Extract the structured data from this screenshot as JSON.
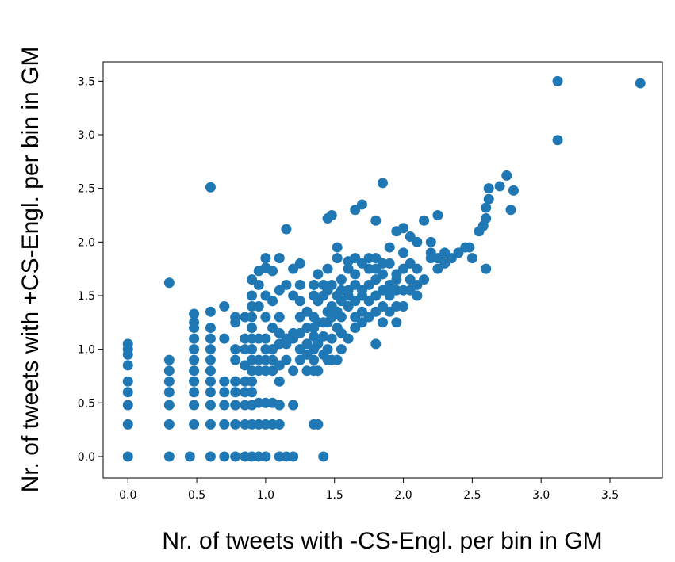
{
  "chart_data": {
    "type": "scatter",
    "xlabel": "Nr. of tweets with -CS-Engl. per bin in GM",
    "ylabel": "Nr. of tweets with +CS-Engl. per bin in GM",
    "xlim": [
      -0.18,
      3.88
    ],
    "ylim": [
      -0.2,
      3.68
    ],
    "x_ticks": [
      "0.0",
      "0.5",
      "1.0",
      "1.5",
      "2.0",
      "2.5",
      "3.0",
      "3.5"
    ],
    "y_ticks": [
      "0.0",
      "0.5",
      "1.0",
      "1.5",
      "2.0",
      "2.5",
      "3.0",
      "3.5"
    ],
    "marker_color": "#1f77b4",
    "grid": false,
    "series": [
      {
        "points": [
          [
            0.0,
            0.0
          ],
          [
            0.0,
            0.3
          ],
          [
            0.0,
            0.48
          ],
          [
            0.0,
            0.6
          ],
          [
            0.0,
            0.7
          ],
          [
            0.0,
            0.85
          ],
          [
            0.0,
            0.95
          ],
          [
            0.0,
            1.0
          ],
          [
            0.0,
            1.05
          ],
          [
            0.3,
            0.0
          ],
          [
            0.3,
            0.3
          ],
          [
            0.3,
            0.48
          ],
          [
            0.3,
            0.6
          ],
          [
            0.3,
            0.7
          ],
          [
            0.3,
            0.8
          ],
          [
            0.3,
            0.9
          ],
          [
            0.3,
            1.62
          ],
          [
            0.45,
            0.0
          ],
          [
            0.48,
            0.3
          ],
          [
            0.48,
            0.48
          ],
          [
            0.48,
            0.6
          ],
          [
            0.48,
            0.7
          ],
          [
            0.48,
            0.8
          ],
          [
            0.48,
            0.9
          ],
          [
            0.48,
            1.0
          ],
          [
            0.48,
            1.1
          ],
          [
            0.48,
            1.2
          ],
          [
            0.48,
            1.25
          ],
          [
            0.48,
            1.33
          ],
          [
            0.6,
            0.0
          ],
          [
            0.6,
            0.3
          ],
          [
            0.6,
            0.48
          ],
          [
            0.6,
            0.6
          ],
          [
            0.6,
            0.7
          ],
          [
            0.6,
            0.8
          ],
          [
            0.6,
            0.9
          ],
          [
            0.6,
            1.0
          ],
          [
            0.6,
            1.1
          ],
          [
            0.6,
            1.2
          ],
          [
            0.6,
            1.35
          ],
          [
            0.6,
            2.51
          ],
          [
            0.7,
            0.0
          ],
          [
            0.7,
            0.3
          ],
          [
            0.7,
            0.48
          ],
          [
            0.7,
            0.6
          ],
          [
            0.7,
            0.7
          ],
          [
            0.7,
            1.1
          ],
          [
            0.7,
            1.4
          ],
          [
            0.78,
            0.0
          ],
          [
            0.78,
            0.3
          ],
          [
            0.78,
            0.48
          ],
          [
            0.78,
            0.6
          ],
          [
            0.78,
            0.7
          ],
          [
            0.78,
            0.9
          ],
          [
            0.78,
            1.0
          ],
          [
            0.78,
            1.25
          ],
          [
            0.78,
            1.3
          ],
          [
            0.85,
            0.0
          ],
          [
            0.85,
            0.3
          ],
          [
            0.85,
            0.48
          ],
          [
            0.85,
            0.6
          ],
          [
            0.85,
            0.7
          ],
          [
            0.85,
            0.85
          ],
          [
            0.85,
            1.0
          ],
          [
            0.85,
            1.1
          ],
          [
            0.85,
            1.3
          ],
          [
            0.9,
            0.0
          ],
          [
            0.9,
            0.3
          ],
          [
            0.9,
            0.48
          ],
          [
            0.9,
            0.6
          ],
          [
            0.9,
            0.7
          ],
          [
            0.9,
            0.8
          ],
          [
            0.9,
            0.9
          ],
          [
            0.9,
            1.0
          ],
          [
            0.9,
            1.1
          ],
          [
            0.9,
            1.2
          ],
          [
            0.9,
            1.3
          ],
          [
            0.9,
            1.4
          ],
          [
            0.9,
            1.5
          ],
          [
            0.9,
            1.65
          ],
          [
            0.95,
            0.0
          ],
          [
            0.95,
            0.3
          ],
          [
            0.95,
            0.5
          ],
          [
            0.95,
            0.8
          ],
          [
            0.95,
            0.9
          ],
          [
            0.95,
            1.1
          ],
          [
            0.95,
            1.4
          ],
          [
            0.95,
            1.6
          ],
          [
            0.95,
            1.73
          ],
          [
            1.0,
            0.0
          ],
          [
            1.0,
            0.3
          ],
          [
            1.0,
            0.5
          ],
          [
            1.0,
            0.8
          ],
          [
            1.0,
            0.9
          ],
          [
            1.0,
            1.0
          ],
          [
            1.0,
            1.1
          ],
          [
            1.0,
            1.3
          ],
          [
            1.0,
            1.5
          ],
          [
            1.0,
            1.76
          ],
          [
            1.0,
            1.85
          ],
          [
            1.05,
            0.3
          ],
          [
            1.05,
            0.5
          ],
          [
            1.05,
            0.8
          ],
          [
            1.05,
            0.9
          ],
          [
            1.05,
            1.0
          ],
          [
            1.05,
            1.2
          ],
          [
            1.05,
            1.45
          ],
          [
            1.05,
            1.73
          ],
          [
            1.1,
            0.0
          ],
          [
            1.1,
            0.3
          ],
          [
            1.1,
            0.48
          ],
          [
            1.1,
            0.7
          ],
          [
            1.1,
            0.85
          ],
          [
            1.1,
            1.05
          ],
          [
            1.1,
            1.15
          ],
          [
            1.1,
            1.3
          ],
          [
            1.1,
            1.55
          ],
          [
            1.1,
            1.85
          ],
          [
            1.15,
            0.0
          ],
          [
            1.15,
            0.9
          ],
          [
            1.15,
            1.05
          ],
          [
            1.15,
            1.1
          ],
          [
            1.15,
            1.6
          ],
          [
            1.15,
            2.12
          ],
          [
            1.2,
            0.0
          ],
          [
            1.2,
            0.48
          ],
          [
            1.2,
            0.8
          ],
          [
            1.2,
            1.1
          ],
          [
            1.2,
            1.15
          ],
          [
            1.2,
            1.5
          ],
          [
            1.2,
            1.75
          ],
          [
            1.25,
            0.9
          ],
          [
            1.25,
            1.0
          ],
          [
            1.25,
            1.15
          ],
          [
            1.25,
            1.3
          ],
          [
            1.25,
            1.45
          ],
          [
            1.25,
            1.6
          ],
          [
            1.25,
            1.8
          ],
          [
            1.3,
            0.8
          ],
          [
            1.3,
            0.95
          ],
          [
            1.3,
            1.05
          ],
          [
            1.3,
            1.2
          ],
          [
            1.3,
            1.35
          ],
          [
            1.35,
            0.3
          ],
          [
            1.35,
            0.8
          ],
          [
            1.35,
            0.9
          ],
          [
            1.35,
            1.0
          ],
          [
            1.35,
            1.12
          ],
          [
            1.35,
            1.2
          ],
          [
            1.35,
            1.3
          ],
          [
            1.35,
            1.5
          ],
          [
            1.35,
            1.6
          ],
          [
            1.38,
            0.3
          ],
          [
            1.38,
            0.8
          ],
          [
            1.38,
            1.05
          ],
          [
            1.38,
            1.25
          ],
          [
            1.38,
            1.45
          ],
          [
            1.38,
            1.7
          ],
          [
            1.42,
            0.0
          ],
          [
            1.42,
            0.95
          ],
          [
            1.42,
            1.12
          ],
          [
            1.42,
            1.25
          ],
          [
            1.42,
            1.5
          ],
          [
            1.42,
            1.6
          ],
          [
            1.45,
            0.9
          ],
          [
            1.45,
            1.0
          ],
          [
            1.45,
            1.25
          ],
          [
            1.45,
            1.35
          ],
          [
            1.45,
            1.55
          ],
          [
            1.45,
            1.75
          ],
          [
            1.45,
            2.22
          ],
          [
            1.48,
            0.9
          ],
          [
            1.48,
            1.1
          ],
          [
            1.48,
            1.3
          ],
          [
            1.48,
            1.4
          ],
          [
            1.48,
            1.6
          ],
          [
            1.48,
            2.25
          ],
          [
            1.52,
            0.9
          ],
          [
            1.52,
            1.2
          ],
          [
            1.52,
            1.35
          ],
          [
            1.52,
            1.5
          ],
          [
            1.52,
            1.85
          ],
          [
            1.52,
            1.95
          ],
          [
            1.55,
            1.0
          ],
          [
            1.55,
            1.15
          ],
          [
            1.55,
            1.3
          ],
          [
            1.55,
            1.45
          ],
          [
            1.55,
            1.55
          ],
          [
            1.55,
            1.65
          ],
          [
            1.6,
            1.1
          ],
          [
            1.6,
            1.4
          ],
          [
            1.6,
            1.5
          ],
          [
            1.6,
            1.55
          ],
          [
            1.6,
            1.75
          ],
          [
            1.6,
            1.82
          ],
          [
            1.65,
            1.2
          ],
          [
            1.65,
            1.3
          ],
          [
            1.65,
            1.45
          ],
          [
            1.65,
            1.6
          ],
          [
            1.65,
            1.7
          ],
          [
            1.65,
            1.85
          ],
          [
            1.65,
            2.3
          ],
          [
            1.7,
            1.25
          ],
          [
            1.7,
            1.35
          ],
          [
            1.7,
            1.5
          ],
          [
            1.7,
            1.55
          ],
          [
            1.7,
            1.8
          ],
          [
            1.7,
            2.35
          ],
          [
            1.75,
            1.3
          ],
          [
            1.75,
            1.45
          ],
          [
            1.75,
            1.6
          ],
          [
            1.75,
            1.75
          ],
          [
            1.75,
            1.85
          ],
          [
            1.8,
            1.05
          ],
          [
            1.8,
            1.35
          ],
          [
            1.8,
            1.5
          ],
          [
            1.8,
            1.65
          ],
          [
            1.8,
            1.75
          ],
          [
            1.8,
            1.85
          ],
          [
            1.8,
            2.2
          ],
          [
            1.85,
            1.25
          ],
          [
            1.85,
            1.4
          ],
          [
            1.85,
            1.55
          ],
          [
            1.85,
            1.7
          ],
          [
            1.85,
            1.8
          ],
          [
            1.85,
            2.55
          ],
          [
            1.9,
            1.35
          ],
          [
            1.9,
            1.5
          ],
          [
            1.9,
            1.55
          ],
          [
            1.9,
            1.6
          ],
          [
            1.9,
            1.8
          ],
          [
            1.9,
            1.95
          ],
          [
            1.95,
            1.25
          ],
          [
            1.95,
            1.4
          ],
          [
            1.95,
            1.55
          ],
          [
            1.95,
            1.65
          ],
          [
            1.95,
            1.7
          ],
          [
            1.95,
            2.1
          ],
          [
            2.0,
            1.4
          ],
          [
            2.0,
            1.55
          ],
          [
            2.0,
            1.75
          ],
          [
            2.0,
            1.9
          ],
          [
            2.0,
            2.13
          ],
          [
            2.05,
            1.55
          ],
          [
            2.05,
            1.65
          ],
          [
            2.05,
            1.8
          ],
          [
            2.05,
            2.05
          ],
          [
            2.1,
            1.5
          ],
          [
            2.1,
            1.6
          ],
          [
            2.1,
            1.75
          ],
          [
            2.1,
            2.0
          ],
          [
            2.15,
            1.65
          ],
          [
            2.15,
            2.2
          ],
          [
            2.2,
            1.85
          ],
          [
            2.2,
            1.9
          ],
          [
            2.2,
            2.0
          ],
          [
            2.25,
            1.75
          ],
          [
            2.25,
            1.85
          ],
          [
            2.25,
            2.25
          ],
          [
            2.3,
            1.8
          ],
          [
            2.3,
            1.9
          ],
          [
            2.35,
            1.85
          ],
          [
            2.4,
            1.9
          ],
          [
            2.45,
            1.95
          ],
          [
            2.48,
            1.95
          ],
          [
            2.5,
            1.85
          ],
          [
            2.55,
            2.1
          ],
          [
            2.58,
            2.15
          ],
          [
            2.6,
            2.22
          ],
          [
            2.6,
            2.32
          ],
          [
            2.62,
            2.4
          ],
          [
            2.62,
            2.5
          ],
          [
            2.6,
            1.75
          ],
          [
            2.7,
            2.52
          ],
          [
            2.75,
            2.62
          ],
          [
            2.78,
            2.3
          ],
          [
            2.8,
            2.48
          ],
          [
            3.12,
            2.95
          ],
          [
            3.12,
            3.5
          ],
          [
            3.72,
            3.48
          ]
        ]
      }
    ]
  }
}
